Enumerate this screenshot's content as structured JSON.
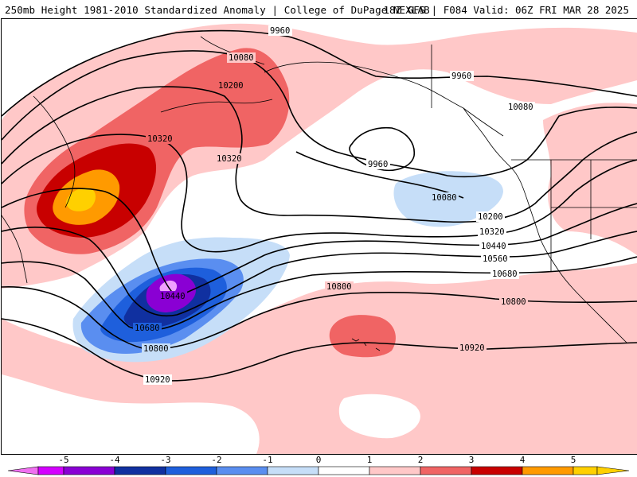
{
  "header": {
    "title_left": "250mb Height 1981-2010 Standardized Anomaly | College of DuPage NEXLAB",
    "title_right": "18Z GFS | F084 Valid: 06Z FRI MAR 28 2025"
  },
  "contour_labels": {
    "c9960_top": "9960",
    "c9960_right": "9960",
    "c9960_low": "9960",
    "c10080_top": "10080",
    "c10080_right": "10080",
    "c10080_pac": "10080",
    "c10200_top": "10200",
    "c10200_right": "10200",
    "c10320_left": "10320",
    "c10320_mid": "10320",
    "c10320_right": "10320",
    "c10440_low": "10440",
    "c10440_right": "10440",
    "c10560_right": "10560",
    "c10680_low": "10680",
    "c10680_right": "10680",
    "c10800_mid": "10800",
    "c10800_low": "10800",
    "c10800_right": "10800",
    "c10920_left": "10920",
    "c10920_right": "10920"
  },
  "colorbar": {
    "labels": [
      "-5",
      "-4",
      "-3",
      "-2",
      "-1",
      "0",
      "1",
      "2",
      "3",
      "4",
      "5"
    ],
    "colors": [
      "#d400ff",
      "#8a00d4",
      "#1030a0",
      "#1e5fdc",
      "#5a8ef0",
      "#c6def8",
      "#ffffff",
      "#ffc8c8",
      "#f06464",
      "#c80000",
      "#ff9a00",
      "#ffd000"
    ]
  },
  "anomaly_colors": {
    "pos1": "#ffc8c8",
    "pos2": "#f06464",
    "pos3": "#c80000",
    "pos4": "#ff9a00",
    "pos5": "#ffd000",
    "neg1": "#c6def8",
    "neg2": "#5a8ef0",
    "neg3": "#1e5fdc",
    "neg4": "#1030a0",
    "neg5": "#8a00d4",
    "neg6": "#f0a0ff"
  }
}
